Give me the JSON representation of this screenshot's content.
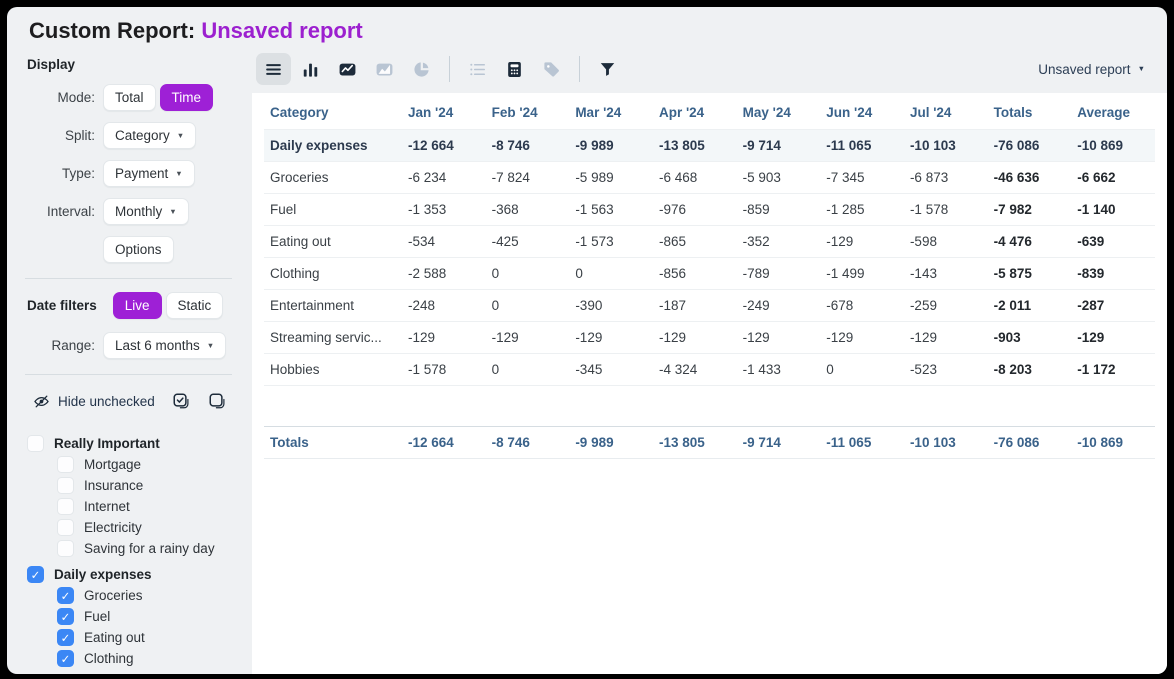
{
  "window_title": {
    "prefix": "Custom Report:",
    "report_name": "Unsaved report"
  },
  "toolbar": {
    "groups": [
      [
        {
          "name": "table-view-icon",
          "state": "selected"
        },
        {
          "name": "bar-chart-icon",
          "state": "active"
        },
        {
          "name": "line-chart-icon",
          "state": "active"
        },
        {
          "name": "area-chart-icon",
          "state": "muted"
        },
        {
          "name": "pie-chart-icon",
          "state": "muted"
        }
      ],
      [
        {
          "name": "list-icon",
          "state": "muted"
        },
        {
          "name": "calculator-icon",
          "state": "active"
        },
        {
          "name": "tag-icon",
          "state": "muted"
        }
      ],
      [
        {
          "name": "filter-icon",
          "state": "active"
        }
      ]
    ],
    "report_selector": "Unsaved report"
  },
  "sidebar": {
    "display": {
      "heading": "Display",
      "mode_label": "Mode:",
      "mode_options": [
        "Total",
        "Time"
      ],
      "mode_selected": "Time",
      "split_label": "Split:",
      "split_value": "Category",
      "type_label": "Type:",
      "type_value": "Payment",
      "interval_label": "Interval:",
      "interval_value": "Monthly",
      "options_button": "Options"
    },
    "date_filters": {
      "heading": "Date filters",
      "options": [
        "Live",
        "Static"
      ],
      "selected": "Live",
      "range_label": "Range:",
      "range_value": "Last 6 months"
    },
    "hide_unchecked_label": "Hide unchecked",
    "bulk_icons": [
      "check-all-icon",
      "uncheck-all-icon"
    ],
    "category_tree": [
      {
        "label": "Really Important",
        "checked": false,
        "children": [
          {
            "label": "Mortgage",
            "checked": false
          },
          {
            "label": "Insurance",
            "checked": false
          },
          {
            "label": "Internet",
            "checked": false
          },
          {
            "label": "Electricity",
            "checked": false
          },
          {
            "label": "Saving for a rainy day",
            "checked": false
          }
        ]
      },
      {
        "label": "Daily expenses",
        "checked": true,
        "children": [
          {
            "label": "Groceries",
            "checked": true
          },
          {
            "label": "Fuel",
            "checked": true
          },
          {
            "label": "Eating out",
            "checked": true
          },
          {
            "label": "Clothing",
            "checked": true
          }
        ]
      }
    ]
  },
  "table": {
    "columns": [
      "Category",
      "Jan '24",
      "Feb '24",
      "Mar '24",
      "Apr '24",
      "May '24",
      "Jun '24",
      "Jul '24",
      "Totals",
      "Average"
    ],
    "rows": [
      {
        "category": "Daily expenses",
        "highlight": true,
        "values": [
          "-12 664",
          "-8 746",
          "-9 989",
          "-13 805",
          "-9 714",
          "-11 065",
          "-10 103",
          "-76 086",
          "-10 869"
        ]
      },
      {
        "category": "Groceries",
        "highlight": false,
        "values": [
          "-6 234",
          "-7 824",
          "-5 989",
          "-6 468",
          "-5 903",
          "-7 345",
          "-6 873",
          "-46 636",
          "-6 662"
        ]
      },
      {
        "category": "Fuel",
        "highlight": false,
        "values": [
          "-1 353",
          "-368",
          "-1 563",
          "-976",
          "-859",
          "-1 285",
          "-1 578",
          "-7 982",
          "-1 140"
        ]
      },
      {
        "category": "Eating out",
        "highlight": false,
        "values": [
          "-534",
          "-425",
          "-1 573",
          "-865",
          "-352",
          "-129",
          "-598",
          "-4 476",
          "-639"
        ]
      },
      {
        "category": "Clothing",
        "highlight": false,
        "values": [
          "-2 588",
          "0",
          "0",
          "-856",
          "-789",
          "-1 499",
          "-143",
          "-5 875",
          "-839"
        ]
      },
      {
        "category": "Entertainment",
        "highlight": false,
        "values": [
          "-248",
          "0",
          "-390",
          "-187",
          "-249",
          "-678",
          "-259",
          "-2 011",
          "-287"
        ]
      },
      {
        "category": "Streaming servic...",
        "highlight": false,
        "values": [
          "-129",
          "-129",
          "-129",
          "-129",
          "-129",
          "-129",
          "-129",
          "-903",
          "-129"
        ]
      },
      {
        "category": "Hobbies",
        "highlight": false,
        "values": [
          "-1 578",
          "0",
          "-345",
          "-4 324",
          "-1 433",
          "0",
          "-523",
          "-8 203",
          "-1 172"
        ]
      }
    ],
    "totals_row": {
      "category": "Totals",
      "values": [
        "-12 664",
        "-8 746",
        "-9 989",
        "-13 805",
        "-9 714",
        "-11 065",
        "-10 103",
        "-76 086",
        "-10 869"
      ]
    }
  },
  "colors": {
    "accent_purple": "#9e20d6",
    "title_purple": "#9c20cf",
    "checkbox_blue": "#3b87f5",
    "table_header_blue": "#3a628a",
    "icon_dark": "#1d2b3a",
    "icon_muted": "#b9c5d3",
    "sidebar_bg": "#eff1f3",
    "highlight_row_bg": "#f3f7f9"
  }
}
